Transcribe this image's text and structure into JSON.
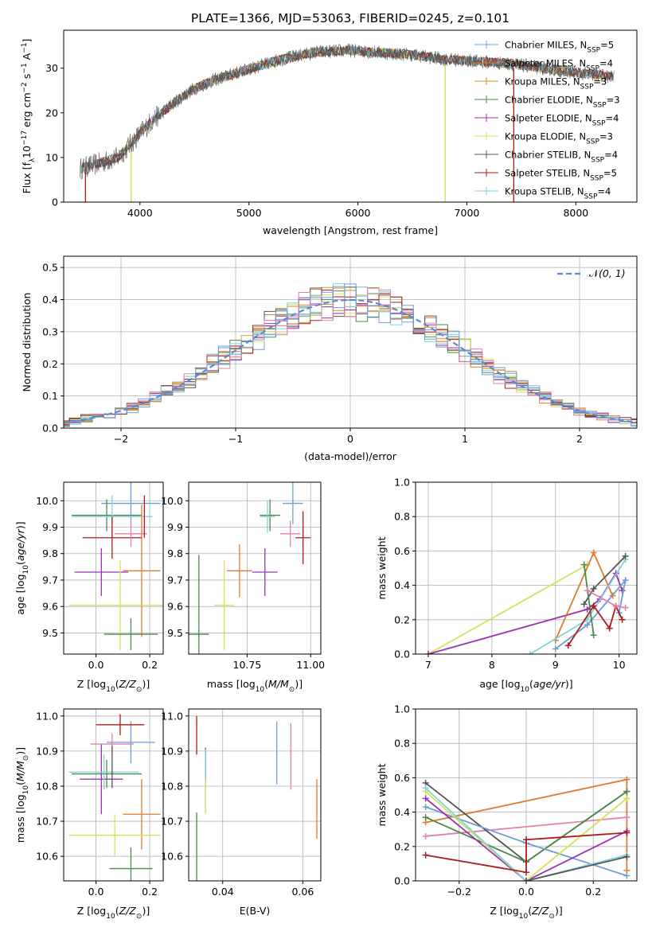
{
  "title": "PLATE=1366, MJD=53063, FIBERID=0245, z=0.101",
  "colors": {
    "miles_chabrier": "#6a9fd6",
    "miles_salpeter": "#e07a2e",
    "miles_kroupa": "#c8901e",
    "elodie_chabrier": "#4a8a4a",
    "elodie_salpeter": "#9b30b0",
    "elodie_kroupa": "#d8e05a",
    "stelib_chabrier": "#555555",
    "stelib_salpeter": "#b01a1a",
    "stelib_kroupa": "#80d0e0",
    "gauss": "#5a8ad6",
    "pink": "#e080b0"
  },
  "legend": [
    "Chabrier MILES, N",
    "Salpeter MILES, N",
    "Kroupa MILES, N",
    "Chabrier ELODIE, N",
    "Salpeter ELODIE, N",
    "Kroupa ELODIE, N",
    "Chabrier STELIB, N",
    "Salpeter STELIB, N",
    "Kroupa STELIB, N"
  ],
  "legend_sub": "SSP",
  "legend_n": [
    "=5",
    "=4",
    "=3",
    "=3",
    "=4",
    "=3",
    "=4",
    "=5",
    "=4"
  ],
  "chart_data": [
    {
      "type": "line",
      "name": "spectrum",
      "xlabel": "wavelength [Angstrom, rest frame]",
      "ylabel_main": "Flux [f",
      "ylabel_sub": "λ",
      "ylabel_rest": "10",
      "ylabel_exp": "−17",
      "ylabel_units": " erg cm",
      "ylabel_exp2": "−2",
      "ylabel_s": " s",
      "ylabel_exp3": "−1",
      "ylabel_A": " A",
      "ylabel_exp4": "−1",
      "ylabel_end": "]",
      "xlim": [
        3300,
        8560
      ],
      "ylim": [
        0,
        38.5
      ],
      "xticks": [
        "4000",
        "5000",
        "6000",
        "7000",
        "8000"
      ],
      "yticks": [
        "0",
        "10",
        "20",
        "30"
      ],
      "continuum": [
        [
          3450,
          7.5
        ],
        [
          3600,
          8.5
        ],
        [
          3800,
          10
        ],
        [
          3950,
          14
        ],
        [
          4100,
          18
        ],
        [
          4300,
          22
        ],
        [
          4500,
          25.5
        ],
        [
          4700,
          27.5
        ],
        [
          4900,
          29
        ],
        [
          5100,
          30.5
        ],
        [
          5300,
          32
        ],
        [
          5600,
          33.5
        ],
        [
          5900,
          34
        ],
        [
          6200,
          33.5
        ],
        [
          6500,
          33
        ],
        [
          6800,
          32
        ],
        [
          7100,
          31.5
        ],
        [
          7400,
          31
        ],
        [
          7700,
          30
        ],
        [
          8000,
          29
        ],
        [
          8350,
          28
        ]
      ]
    },
    {
      "type": "bar",
      "name": "residual histogram",
      "xlabel": "(data-model)/error",
      "ylabel": "Normed distribution",
      "xlim": [
        -2.5,
        2.5
      ],
      "ylim": [
        0,
        0.535
      ],
      "xticks": [
        "−2",
        "−1",
        "0",
        "1",
        "2"
      ],
      "yticks": [
        "0.0",
        "0.1",
        "0.2",
        "0.3",
        "0.4",
        "0.5"
      ],
      "bin_width": 0.1,
      "legend": "N(0,1)"
    },
    {
      "type": "scatter",
      "name": "age vs Z",
      "xlabel": "Z [log",
      "ylabel": "age  [log",
      "xticks": [
        "0.0",
        "0.2"
      ],
      "yticks": [
        "9.5",
        "9.6",
        "9.7",
        "9.8",
        "9.9",
        "10.0"
      ],
      "xlim": [
        -0.12,
        0.25
      ],
      "ylim": [
        9.42,
        10.07
      ],
      "points": [
        {
          "x": 0.13,
          "y": 9.99,
          "dx": 0.11,
          "dy": 0.08,
          "c": "miles_chabrier"
        },
        {
          "x": 0.17,
          "y": 9.735,
          "dx": 0.07,
          "dy": 0.25,
          "c": "miles_salpeter"
        },
        {
          "x": 0.04,
          "y": 9.945,
          "dx": 0.13,
          "dy": 0.06,
          "c": "elodie_chabrier"
        },
        {
          "x": 0.02,
          "y": 9.73,
          "dx": 0.1,
          "dy": 0.09,
          "c": "elodie_salpeter"
        },
        {
          "x": 0.09,
          "y": 9.605,
          "dx": 0.19,
          "dy": 0.17,
          "c": "elodie_kroupa"
        },
        {
          "x": 0.13,
          "y": 9.495,
          "dx": 0.1,
          "dy": 0.06,
          "c": "elodie_chabrier"
        },
        {
          "x": 0.06,
          "y": 9.94,
          "dx": 0.15,
          "dy": 0.08,
          "c": "stelib_kroupa"
        },
        {
          "x": 0.06,
          "y": 9.86,
          "dx": 0.11,
          "dy": 0.08,
          "c": "stelib_salpeter"
        },
        {
          "x": 0.13,
          "y": 9.875,
          "dx": 0.06,
          "dy": 0.05,
          "c": "pink"
        },
        {
          "x": 0.18,
          "y": 9.94,
          "dx": 0.0,
          "dy": 0.08,
          "c": "stelib_salpeter"
        }
      ]
    },
    {
      "type": "scatter",
      "name": "age vs mass",
      "xlabel": "mass [log",
      "xticks": [
        "10.75",
        "11.00"
      ],
      "yticks": [
        "9.5",
        "9.6",
        "9.7",
        "9.8",
        "9.9",
        "10.0"
      ],
      "xlim": [
        10.52,
        11.04
      ],
      "ylim": [
        9.42,
        10.07
      ],
      "points": [
        {
          "x": 10.93,
          "y": 9.99,
          "dx": 0.04,
          "dy": 0.08,
          "c": "miles_chabrier"
        },
        {
          "x": 10.72,
          "y": 9.735,
          "dx": 0.05,
          "dy": 0.1,
          "c": "miles_salpeter"
        },
        {
          "x": 10.84,
          "y": 9.945,
          "dx": 0.04,
          "dy": 0.06,
          "c": "elodie_chabrier"
        },
        {
          "x": 10.82,
          "y": 9.73,
          "dx": 0.05,
          "dy": 0.09,
          "c": "elodie_salpeter"
        },
        {
          "x": 10.66,
          "y": 9.605,
          "dx": 0.04,
          "dy": 0.17,
          "c": "elodie_kroupa"
        },
        {
          "x": 10.56,
          "y": 9.495,
          "dx": 0.04,
          "dy": 0.3,
          "c": "elodie_chabrier"
        },
        {
          "x": 10.83,
          "y": 9.94,
          "dx": 0.03,
          "dy": 0.06,
          "c": "stelib_kroupa"
        },
        {
          "x": 10.97,
          "y": 9.86,
          "dx": 0.03,
          "dy": 0.1,
          "c": "stelib_salpeter"
        },
        {
          "x": 10.92,
          "y": 9.875,
          "dx": 0.04,
          "dy": 0.05,
          "c": "pink"
        }
      ]
    },
    {
      "type": "line",
      "name": "mass weight vs age",
      "xlabel": "age  [log",
      "ylabel": "mass weight",
      "xticks": [
        "7",
        "8",
        "9",
        "10"
      ],
      "yticks": [
        "0.0",
        "0.2",
        "0.4",
        "0.6",
        "0.8",
        "1.0"
      ],
      "xlim": [
        6.8,
        10.28
      ],
      "ylim": [
        0,
        1.0
      ],
      "series": [
        {
          "c": "elodie_kroupa",
          "pts": [
            [
              7.0,
              0.0
            ],
            [
              9.5,
              0.52
            ]
          ]
        },
        {
          "c": "elodie_salpeter",
          "pts": [
            [
              7.0,
              0.0
            ],
            [
              9.5,
              0.26
            ],
            [
              9.7,
              0.32
            ],
            [
              9.95,
              0.47
            ],
            [
              10.05,
              0.37
            ]
          ]
        },
        {
          "c": "miles_salpeter",
          "pts": [
            [
              9.0,
              0.08
            ],
            [
              9.6,
              0.59
            ],
            [
              9.9,
              0.34
            ]
          ]
        },
        {
          "c": "miles_chabrier",
          "pts": [
            [
              9.0,
              0.03
            ],
            [
              9.5,
              0.17
            ],
            [
              10.1,
              0.43
            ],
            [
              10.0,
              0.24
            ]
          ]
        },
        {
          "c": "stelib_kroupa",
          "pts": [
            [
              8.6,
              0.0
            ],
            [
              9.5,
              0.2
            ],
            [
              10.1,
              0.55
            ]
          ]
        },
        {
          "c": "stelib_chabrier",
          "pts": [
            [
              9.45,
              0.29
            ],
            [
              9.6,
              0.38
            ],
            [
              10.1,
              0.57
            ]
          ]
        },
        {
          "c": "elodie_chabrier",
          "pts": [
            [
              9.45,
              0.52
            ],
            [
              9.6,
              0.11
            ]
          ]
        },
        {
          "c": "stelib_salpeter",
          "pts": [
            [
              9.2,
              0.05
            ],
            [
              9.6,
              0.28
            ],
            [
              9.85,
              0.15
            ],
            [
              9.95,
              0.28
            ],
            [
              10.05,
              0.2
            ]
          ]
        },
        {
          "c": "pink",
          "pts": [
            [
              9.5,
              0.37
            ],
            [
              9.95,
              0.28
            ],
            [
              10.1,
              0.27
            ]
          ]
        }
      ]
    },
    {
      "type": "scatter",
      "name": "mass vs Z",
      "xlabel": "Z [log",
      "ylabel": "mass [log",
      "xticks": [
        "0.0",
        "0.2"
      ],
      "yticks": [
        "10.6",
        "10.7",
        "10.8",
        "10.9",
        "11.0"
      ],
      "xlim": [
        -0.12,
        0.25
      ],
      "ylim": [
        10.53,
        11.02
      ],
      "points": [
        {
          "x": 0.13,
          "y": 10.925,
          "dx": 0.09,
          "dy": 0.06,
          "c": "miles_chabrier"
        },
        {
          "x": 0.17,
          "y": 10.72,
          "dx": 0.07,
          "dy": 0.1,
          "c": "miles_salpeter"
        },
        {
          "x": 0.04,
          "y": 10.835,
          "dx": 0.13,
          "dy": 0.04,
          "c": "elodie_chabrier"
        },
        {
          "x": 0.02,
          "y": 10.82,
          "dx": 0.08,
          "dy": 0.1,
          "c": "elodie_salpeter"
        },
        {
          "x": 0.07,
          "y": 10.66,
          "dx": 0.17,
          "dy": 0.06,
          "c": "elodie_kroupa"
        },
        {
          "x": 0.13,
          "y": 10.565,
          "dx": 0.08,
          "dy": 0.06,
          "c": "elodie_chabrier"
        },
        {
          "x": 0.03,
          "y": 10.84,
          "dx": 0.13,
          "dy": 0.05,
          "c": "stelib_kroupa"
        },
        {
          "x": 0.09,
          "y": 10.975,
          "dx": 0.09,
          "dy": 0.03,
          "c": "stelib_salpeter"
        },
        {
          "x": 0.06,
          "y": 10.92,
          "dx": 0.08,
          "dy": 0.03,
          "c": "pink"
        },
        {
          "x": 0.06,
          "y": 10.855,
          "dx": 0.0,
          "dy": 0.06,
          "c": "stelib_chabrier"
        }
      ]
    },
    {
      "type": "scatter",
      "name": "mass vs E(B-V)",
      "xlabel": "E(B-V)",
      "xticks": [
        "0.04",
        "0.06"
      ],
      "yticks": [
        "10.6",
        "10.7",
        "10.8",
        "10.9",
        "11.0"
      ],
      "xlim": [
        0.0315,
        0.0645
      ],
      "ylim": [
        10.53,
        11.02
      ],
      "points": [
        {
          "x": 0.0335,
          "y": 10.945,
          "dy": 0.055,
          "c": "stelib_salpeter"
        },
        {
          "x": 0.0335,
          "y": 10.625,
          "dy": 0.1,
          "c": "elodie_chabrier"
        },
        {
          "x": 0.0357,
          "y": 10.85,
          "dy": 0.06,
          "c": "stelib_chabrier"
        },
        {
          "x": 0.0357,
          "y": 10.815,
          "dy": 0.09,
          "c": "stelib_kroupa"
        },
        {
          "x": 0.0357,
          "y": 10.77,
          "dy": 0.05,
          "c": "elodie_kroupa"
        },
        {
          "x": 0.0535,
          "y": 10.895,
          "dy": 0.09,
          "c": "miles_chabrier"
        },
        {
          "x": 0.057,
          "y": 10.885,
          "dy": 0.095,
          "c": "pink"
        },
        {
          "x": 0.0635,
          "y": 10.735,
          "dy": 0.085,
          "c": "miles_salpeter"
        }
      ]
    },
    {
      "type": "line",
      "name": "mass weight vs Z",
      "xlabel": "Z [log",
      "ylabel": "mass weight",
      "xticks": [
        "−0.2",
        "0.0",
        "0.2"
      ],
      "yticks": [
        "0.0",
        "0.2",
        "0.4",
        "0.6",
        "0.8",
        "1.0"
      ],
      "xlim": [
        -0.33,
        0.33
      ],
      "ylim": [
        0,
        1.0
      ],
      "series": [
        {
          "c": "miles_salpeter",
          "pts": [
            [
              -0.3,
              0.34
            ],
            [
              0.3,
              0.59
            ],
            [
              0.3,
              0.06
            ]
          ]
        },
        {
          "c": "pink",
          "pts": [
            [
              -0.3,
              0.26
            ],
            [
              0.3,
              0.37
            ]
          ]
        },
        {
          "c": "stelib_chabrier",
          "pts": [
            [
              -0.3,
              0.57
            ],
            [
              0.0,
              0.11
            ],
            [
              0.3,
              0.52
            ]
          ]
        },
        {
          "c": "elodie_chabrier",
          "pts": [
            [
              -0.3,
              0.37
            ],
            [
              0.0,
              0.11
            ],
            [
              0.3,
              0.52
            ]
          ]
        },
        {
          "c": "miles_chabrier",
          "pts": [
            [
              -0.3,
              0.43
            ],
            [
              0.0,
              0.22
            ],
            [
              0.3,
              0.03
            ]
          ]
        },
        {
          "c": "elodie_salpeter",
          "pts": [
            [
              -0.3,
              0.48
            ],
            [
              0.0,
              0.0
            ],
            [
              0.3,
              0.29
            ]
          ]
        },
        {
          "c": "elodie_kroupa",
          "pts": [
            [
              -0.3,
              0.52
            ],
            [
              0.0,
              0.0
            ],
            [
              0.3,
              0.48
            ]
          ]
        },
        {
          "c": "stelib_kroupa",
          "pts": [
            [
              -0.3,
              0.54
            ],
            [
              0.0,
              0.0
            ],
            [
              0.3,
              0.15
            ]
          ]
        },
        {
          "c": "stelib_salpeter",
          "pts": [
            [
              -0.3,
              0.15
            ],
            [
              0.0,
              0.05
            ],
            [
              0.0,
              0.24
            ],
            [
              0.3,
              0.28
            ]
          ]
        },
        {
          "c": "stelib_chabrier",
          "pts": [
            [
              0.0,
              0.0
            ],
            [
              0.3,
              0.14
            ]
          ]
        }
      ]
    }
  ]
}
